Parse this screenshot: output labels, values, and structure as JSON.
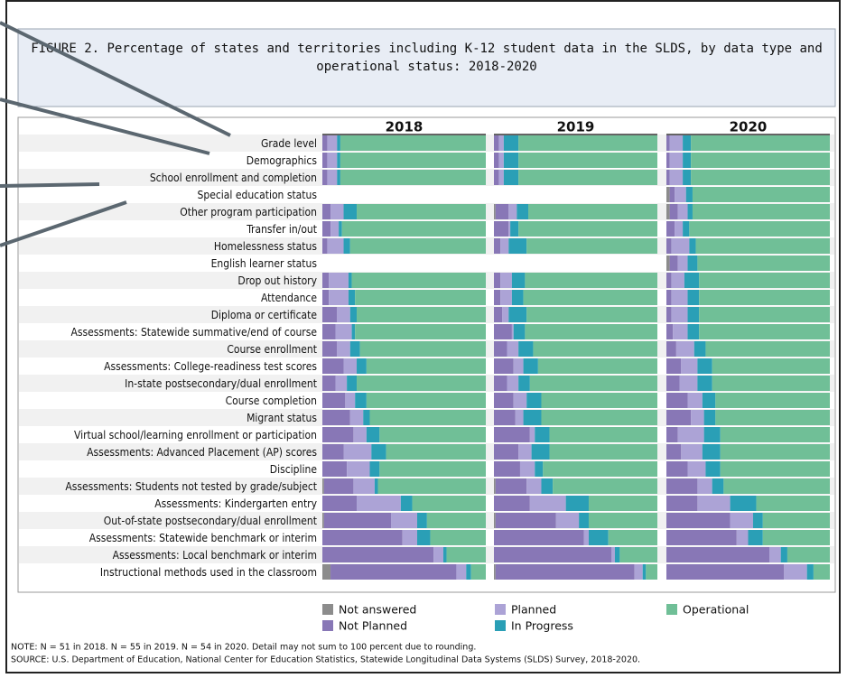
{
  "chart_data": {
    "type": "bar",
    "orientation": "horizontal",
    "stacked": true,
    "title": "FIGURE 2. Percentage of states and territories including K-12 student data in the SLDS, by data type and operational status: 2018-2020",
    "categories": [
      "Grade level",
      "Demographics",
      "School enrollment and completion",
      "Special education status",
      "Other program participation",
      "Transfer in/out",
      "Homelessness status",
      "English learner status",
      "Drop out history",
      "Attendance",
      "Diploma or certificate",
      "Assessments: Statewide summative/end of course",
      "Course enrollment",
      "Assessments: College-readiness test scores",
      "In-state postsecondary/dual enrollment",
      "Course completion",
      "Migrant status",
      "Virtual school/learning enrollment or participation",
      "Assessments: Advanced Placement (AP) scores",
      "Discipline",
      "Assessments: Students not tested by grade/subject",
      "Assessments: Kindergarten entry",
      "Out-of-state postsecondary/dual enrollment",
      "Assessments: Statewide benchmark or interim",
      "Assessments: Local benchmark or interim",
      "Instructional methods used in the classroom"
    ],
    "xlim": [
      0,
      100
    ],
    "legend": [
      {
        "name": "Not answered",
        "color": "#8c8c8c"
      },
      {
        "name": "Not Planned",
        "color": "#8877b6"
      },
      {
        "name": "Planned",
        "color": "#aca3d6"
      },
      {
        "name": "In Progress",
        "color": "#2a9fb6"
      },
      {
        "name": "Operational",
        "color": "#70bf97"
      }
    ],
    "panels": [
      {
        "title": "2018",
        "series": [
          {
            "values": [
              0,
              0,
              0,
              null,
              0,
              0,
              0,
              null,
              0,
              0,
              0,
              0,
              0,
              0,
              0,
              0,
              0,
              0,
              0,
              0,
              1,
              0,
              1,
              0,
              0,
              5
            ]
          },
          {
            "values": [
              3,
              3,
              3,
              null,
              5,
              5,
              3,
              null,
              4,
              4,
              9,
              8,
              9,
              13,
              8,
              14,
              17,
              19,
              13,
              15,
              18,
              21,
              41,
              49,
              68,
              77
            ]
          },
          {
            "values": [
              6,
              6,
              6,
              null,
              8,
              5,
              10,
              null,
              12,
              12,
              8,
              10,
              8,
              8,
              7,
              6,
              8,
              8,
              17,
              14,
              13,
              27,
              16,
              9,
              6,
              6
            ]
          },
          {
            "values": [
              2,
              2,
              2,
              null,
              8,
              2,
              4,
              null,
              2,
              4,
              4,
              2,
              6,
              6,
              6,
              7,
              4,
              8,
              9,
              6,
              2,
              7,
              6,
              8,
              2,
              3
            ]
          },
          {
            "values": [
              89,
              89,
              89,
              null,
              79,
              88,
              83,
              null,
              82,
              80,
              79,
              80,
              77,
              73,
              79,
              73,
              71,
              65,
              61,
              65,
              66,
              45,
              36,
              34,
              24,
              9
            ]
          }
        ]
      },
      {
        "title": "2019",
        "series": [
          {
            "values": [
              0,
              0,
              0,
              null,
              1,
              0,
              0,
              null,
              0,
              0,
              0,
              0,
              0,
              0,
              0,
              0,
              0,
              0,
              0,
              0,
              1,
              0,
              1,
              0,
              0,
              1
            ]
          },
          {
            "values": [
              3,
              3,
              3,
              null,
              8,
              9,
              4,
              null,
              4,
              4,
              5,
              11,
              8,
              12,
              8,
              12,
              13,
              22,
              15,
              16,
              19,
              22,
              37,
              55,
              72,
              85
            ]
          },
          {
            "values": [
              3,
              3,
              3,
              null,
              5,
              1,
              5,
              null,
              7,
              7,
              4,
              1,
              7,
              6,
              7,
              8,
              5,
              3,
              8,
              9,
              9,
              22,
              14,
              3,
              2,
              5
            ]
          },
          {
            "values": [
              9,
              9,
              9,
              null,
              7,
              5,
              11,
              null,
              8,
              7,
              11,
              7,
              9,
              9,
              7,
              9,
              11,
              9,
              11,
              5,
              7,
              14,
              6,
              12,
              3,
              2
            ]
          },
          {
            "values": [
              85,
              85,
              85,
              null,
              79,
              85,
              80,
              null,
              81,
              82,
              80,
              81,
              76,
              73,
              78,
              71,
              71,
              66,
              66,
              70,
              64,
              42,
              42,
              30,
              23,
              7
            ]
          }
        ]
      },
      {
        "title": "2020",
        "series": [
          {
            "values": [
              0,
              0,
              0,
              2,
              2,
              0,
              0,
              2,
              0,
              0,
              0,
              0,
              0,
              0,
              0,
              0,
              0,
              0,
              0,
              0,
              0,
              0,
              0,
              0,
              0,
              0
            ]
          },
          {
            "values": [
              2,
              2,
              2,
              3,
              5,
              5,
              3,
              5,
              3,
              3,
              3,
              4,
              6,
              9,
              8,
              13,
              15,
              7,
              9,
              13,
              19,
              19,
              39,
              43,
              63,
              72
            ]
          },
          {
            "values": [
              8,
              8,
              8,
              7,
              6,
              5,
              11,
              6,
              8,
              10,
              10,
              9,
              11,
              10,
              11,
              9,
              8,
              16,
              13,
              11,
              9,
              20,
              14,
              7,
              7,
              14
            ]
          },
          {
            "values": [
              5,
              5,
              5,
              4,
              3,
              4,
              4,
              6,
              9,
              7,
              7,
              7,
              7,
              9,
              9,
              8,
              7,
              10,
              11,
              9,
              7,
              16,
              6,
              9,
              4,
              4
            ]
          },
          {
            "values": [
              85,
              85,
              85,
              84,
              84,
              86,
              82,
              81,
              80,
              80,
              80,
              80,
              76,
              72,
              72,
              70,
              70,
              67,
              67,
              67,
              65,
              45,
              41,
              41,
              26,
              10
            ]
          }
        ]
      }
    ],
    "note": "NOTE: N = 51 in 2018. N = 55 in 2019. N = 54 in 2020. Detail may not sum to 100 percent due to rounding.",
    "source": "SOURCE: U.S. Department of Education, National Center for Education Statistics, Statewide Longitudinal Data Systems (SLDS) Survey, 2018-2020."
  }
}
